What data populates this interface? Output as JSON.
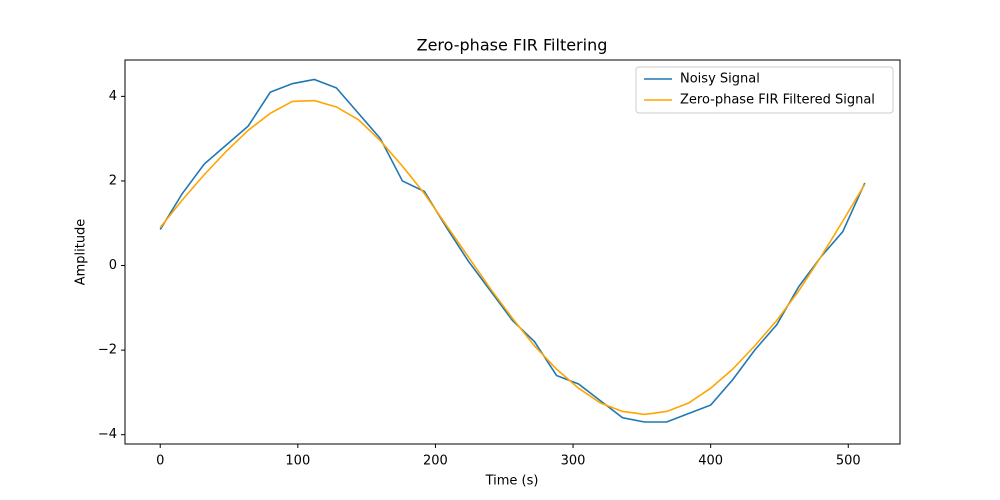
{
  "chart_data": {
    "type": "line",
    "title": "Zero-phase FIR Filtering",
    "x_label": "Time (s)",
    "y_label": "Amplitude",
    "x": [
      0,
      16,
      32,
      48,
      64,
      80,
      96,
      112,
      128,
      144,
      160,
      176,
      192,
      208,
      224,
      240,
      256,
      272,
      288,
      304,
      320,
      336,
      352,
      368,
      384,
      400,
      416,
      432,
      448,
      464,
      480,
      496,
      512
    ],
    "series": [
      {
        "name": "Noisy Signal",
        "color": "#1f77b4",
        "values": [
          0.85,
          1.7,
          2.4,
          2.85,
          3.3,
          4.1,
          4.3,
          4.4,
          4.2,
          3.6,
          3.0,
          2.0,
          1.75,
          0.9,
          0.1,
          -0.6,
          -1.3,
          -1.8,
          -2.6,
          -2.8,
          -3.2,
          -3.6,
          -3.7,
          -3.7,
          -3.5,
          -3.3,
          -2.7,
          -2.0,
          -1.4,
          -0.5,
          0.2,
          0.8,
          1.95
        ]
      },
      {
        "name": "Zero-phase FIR Filtered Signal",
        "color": "#ffa500",
        "values": [
          0.9,
          1.55,
          2.15,
          2.7,
          3.2,
          3.6,
          3.88,
          3.9,
          3.75,
          3.45,
          2.95,
          2.35,
          1.7,
          0.95,
          0.2,
          -0.55,
          -1.25,
          -1.9,
          -2.45,
          -2.9,
          -3.25,
          -3.45,
          -3.52,
          -3.45,
          -3.25,
          -2.9,
          -2.45,
          -1.9,
          -1.3,
          -0.6,
          0.2,
          1.05,
          1.92
        ]
      }
    ],
    "xlim": [
      -25.6,
      537.6
    ],
    "ylim": [
      -4.22,
      4.86
    ],
    "xticks": [
      0,
      100,
      200,
      300,
      400,
      500
    ],
    "yticks": [
      {
        "value": -4,
        "label": "−4"
      },
      {
        "value": -2,
        "label": "−2"
      },
      0,
      2,
      4
    ],
    "legend": "upper right"
  }
}
